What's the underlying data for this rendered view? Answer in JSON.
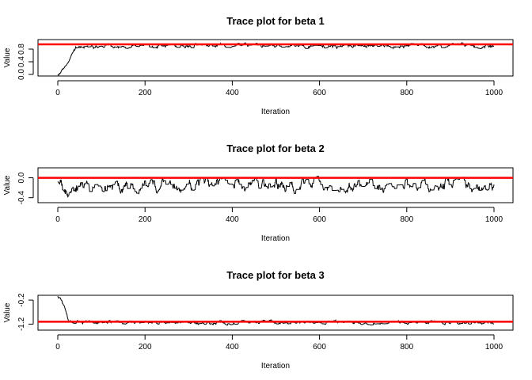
{
  "chart_data": [
    {
      "type": "line",
      "title": "Trace plot for beta 1",
      "xlabel": "Iteration",
      "ylabel": "Value",
      "xlim": [
        0,
        1000
      ],
      "ylim": [
        -0.05,
        1.1
      ],
      "x_ticks": [
        0,
        200,
        400,
        600,
        800,
        1000
      ],
      "y_ticks": [
        0.0,
        0.4,
        0.8
      ],
      "y_tick_labels": [
        "0.0",
        "0.4",
        "0.8"
      ],
      "reference_line": {
        "value": 0.95,
        "color": "#ff0000"
      },
      "series_color": "#000000",
      "trace_anchors": [
        [
          0,
          0.02
        ],
        [
          5,
          0.06
        ],
        [
          10,
          0.18
        ],
        [
          15,
          0.26
        ],
        [
          20,
          0.33
        ],
        [
          25,
          0.45
        ],
        [
          30,
          0.62
        ],
        [
          35,
          0.76
        ],
        [
          40,
          0.84
        ],
        [
          50,
          0.88
        ],
        [
          60,
          0.86
        ],
        [
          100,
          0.9
        ],
        [
          200,
          0.87
        ],
        [
          300,
          0.92
        ],
        [
          400,
          0.9
        ],
        [
          500,
          0.91
        ],
        [
          600,
          0.89
        ],
        [
          700,
          0.9
        ],
        [
          800,
          0.9
        ],
        [
          900,
          0.91
        ],
        [
          1000,
          0.9
        ]
      ],
      "trace_noise": 0.045,
      "trace_seed": 11
    },
    {
      "type": "line",
      "title": "Trace plot for beta 2",
      "xlabel": "Iteration",
      "ylabel": "Value",
      "xlim": [
        0,
        1000
      ],
      "ylim": [
        -0.5,
        0.2
      ],
      "x_ticks": [
        0,
        200,
        400,
        600,
        800,
        1000
      ],
      "y_ticks": [
        -0.4,
        0.0
      ],
      "y_tick_labels": [
        "-0.4",
        "0.0"
      ],
      "reference_line": {
        "value": 0.0,
        "color": "#ff0000"
      },
      "series_color": "#000000",
      "trace_anchors": [
        [
          0,
          -0.05
        ],
        [
          20,
          -0.3
        ],
        [
          35,
          -0.15
        ],
        [
          60,
          -0.2
        ],
        [
          200,
          -0.15
        ],
        [
          400,
          -0.13
        ],
        [
          600,
          -0.16
        ],
        [
          800,
          -0.14
        ],
        [
          1000,
          -0.15
        ]
      ],
      "trace_noise": 0.09,
      "trace_seed": 23
    },
    {
      "type": "line",
      "title": "Trace plot for beta 3",
      "xlabel": "Iteration",
      "ylabel": "Value",
      "xlim": [
        0,
        1000
      ],
      "ylim": [
        -1.45,
        0.0
      ],
      "x_ticks": [
        0,
        200,
        400,
        600,
        800,
        1000
      ],
      "y_ticks": [
        -1.2,
        -0.2
      ],
      "y_tick_labels": [
        "-1.2",
        "-0.2"
      ],
      "reference_line": {
        "value": -1.1,
        "color": "#ff0000"
      },
      "series_color": "#000000",
      "trace_anchors": [
        [
          0,
          -0.05
        ],
        [
          5,
          -0.1
        ],
        [
          10,
          -0.3
        ],
        [
          15,
          -0.55
        ],
        [
          20,
          -0.85
        ],
        [
          25,
          -1.05
        ],
        [
          30,
          -1.12
        ],
        [
          100,
          -1.12
        ],
        [
          300,
          -1.15
        ],
        [
          500,
          -1.12
        ],
        [
          700,
          -1.13
        ],
        [
          900,
          -1.12
        ],
        [
          1000,
          -1.12
        ]
      ],
      "trace_noise": 0.05,
      "trace_seed": 37
    }
  ]
}
